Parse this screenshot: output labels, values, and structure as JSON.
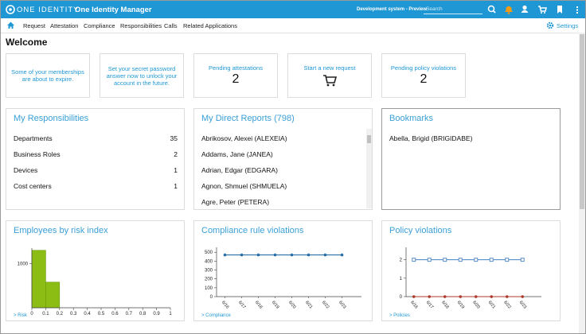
{
  "header": {
    "brand": "ONE IDENTITY",
    "product": "One Identity Manager",
    "system": "Development system - Preview",
    "search_placeholder": "Search"
  },
  "nav": {
    "items": [
      "Request",
      "Attestation",
      "Compliance",
      "Responsibilities",
      "Calls",
      "Related Applications"
    ],
    "settings": "Settings"
  },
  "page_title": "Welcome",
  "tiles": [
    {
      "title": "Some of your memberships are about to expire."
    },
    {
      "title": "Set your secret password answer now to unlock your account in the future."
    },
    {
      "title": "Pending attestations",
      "count": 2
    },
    {
      "title": "Start a new request"
    },
    {
      "title": "Pending policy violations",
      "count": 2
    }
  ],
  "responsibilities": {
    "title": "My Responsibilities",
    "rows": [
      {
        "label": "Departments",
        "count": 35
      },
      {
        "label": "Business Roles",
        "count": 2
      },
      {
        "label": "Devices",
        "count": 1
      },
      {
        "label": "Cost centers",
        "count": 1
      }
    ]
  },
  "direct_reports": {
    "title": "My Direct Reports (798)",
    "items": [
      "Abrikosov, Alexei (ALEXEIA)",
      "Addams, Jane (JANEA)",
      "Adrian, Edgar (EDGARA)",
      "Agnon, Shmuel (SHMUELA)",
      "Agre, Peter (PETERA)"
    ]
  },
  "bookmarks": {
    "title": "Bookmarks",
    "items": [
      "Abella, Brigid (BRIGIDABE)"
    ]
  },
  "chart_data": [
    {
      "type": "histogram",
      "title": "Employees by risk index",
      "link": "> Risk",
      "color": "#8cbd14",
      "bins": [
        0,
        0.1,
        0.2,
        0.3,
        0.4,
        0.5,
        0.6,
        0.7,
        0.8,
        0.9,
        1
      ],
      "values": [
        1300,
        580,
        0,
        0,
        0,
        0,
        0,
        0,
        0,
        0
      ],
      "xlim": [
        0,
        1
      ],
      "xticks": [
        0,
        0.1,
        0.2,
        0.3,
        0.4,
        0.5,
        0.6,
        0.7,
        0.8,
        0.9,
        1
      ],
      "ylim": [
        0,
        1350
      ],
      "yticks": [
        1000
      ]
    },
    {
      "type": "line",
      "title": "Compliance rule violations",
      "link": "> Compliance",
      "categories": [
        "6/16",
        "6/17",
        "6/18",
        "6/19",
        "6/20",
        "6/21",
        "6/22",
        "6/23"
      ],
      "series": [
        {
          "color": "#2a6ea8",
          "marker": "circle",
          "values": [
            470,
            470,
            470,
            470,
            470,
            470,
            470,
            470
          ]
        }
      ],
      "ylim": [
        0,
        520
      ],
      "yticks": [
        0,
        100,
        200,
        300,
        400,
        500
      ]
    },
    {
      "type": "line",
      "title": "Policy violations",
      "link": "> Policies",
      "categories": [
        "6/16",
        "6/17",
        "6/18",
        "6/19",
        "6/20",
        "6/21",
        "6/22",
        "6/23"
      ],
      "series": [
        {
          "color": "#5b8fc7",
          "marker": "square",
          "values": [
            2,
            2,
            2,
            2,
            2,
            2,
            2,
            2
          ]
        },
        {
          "color": "#b03a2e",
          "marker": "circle",
          "values": [
            0,
            0,
            0,
            0,
            0,
            0,
            0,
            0
          ]
        }
      ],
      "ylim": [
        0,
        2.5
      ],
      "yticks": [
        0,
        1,
        2
      ]
    }
  ]
}
